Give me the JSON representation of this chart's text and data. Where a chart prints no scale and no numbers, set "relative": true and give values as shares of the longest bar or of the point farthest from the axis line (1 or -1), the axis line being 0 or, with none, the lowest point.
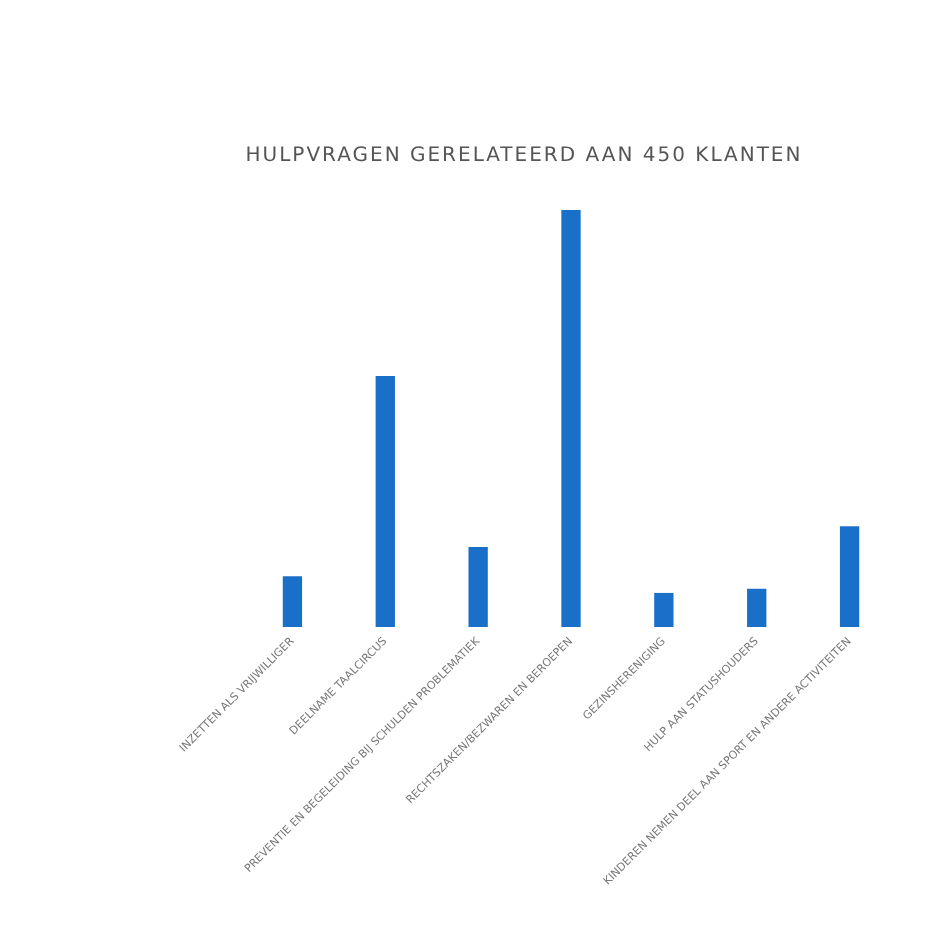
{
  "chart_data": {
    "type": "bar",
    "title": "HULPVRAGEN GERELATEERD AAN 450 KLANTEN",
    "categories": [
      "INZETTEN ALS VRIJWILLIGER",
      "DEELNAME TAALCIRCUS",
      "PREVENTIE EN BEGELEIDING BIJ SCHULDEN PROBLEMATIEK",
      "RECHTSZAKEN/BEZWAREN EN BEROEPEN",
      "GEZINSHERENIGING",
      "HULP AAN STATUSHOUDERS",
      "KINDEREN NEMEN DEEL AAN SPORT EN ANDERE ACTIVITEITEN"
    ],
    "values": [
      0.12,
      0.6,
      0.19,
      1,
      0.08,
      0.09,
      0.24
    ],
    "color": "#1a6fc9",
    "relative": true,
    "grid": false,
    "legend": false
  }
}
